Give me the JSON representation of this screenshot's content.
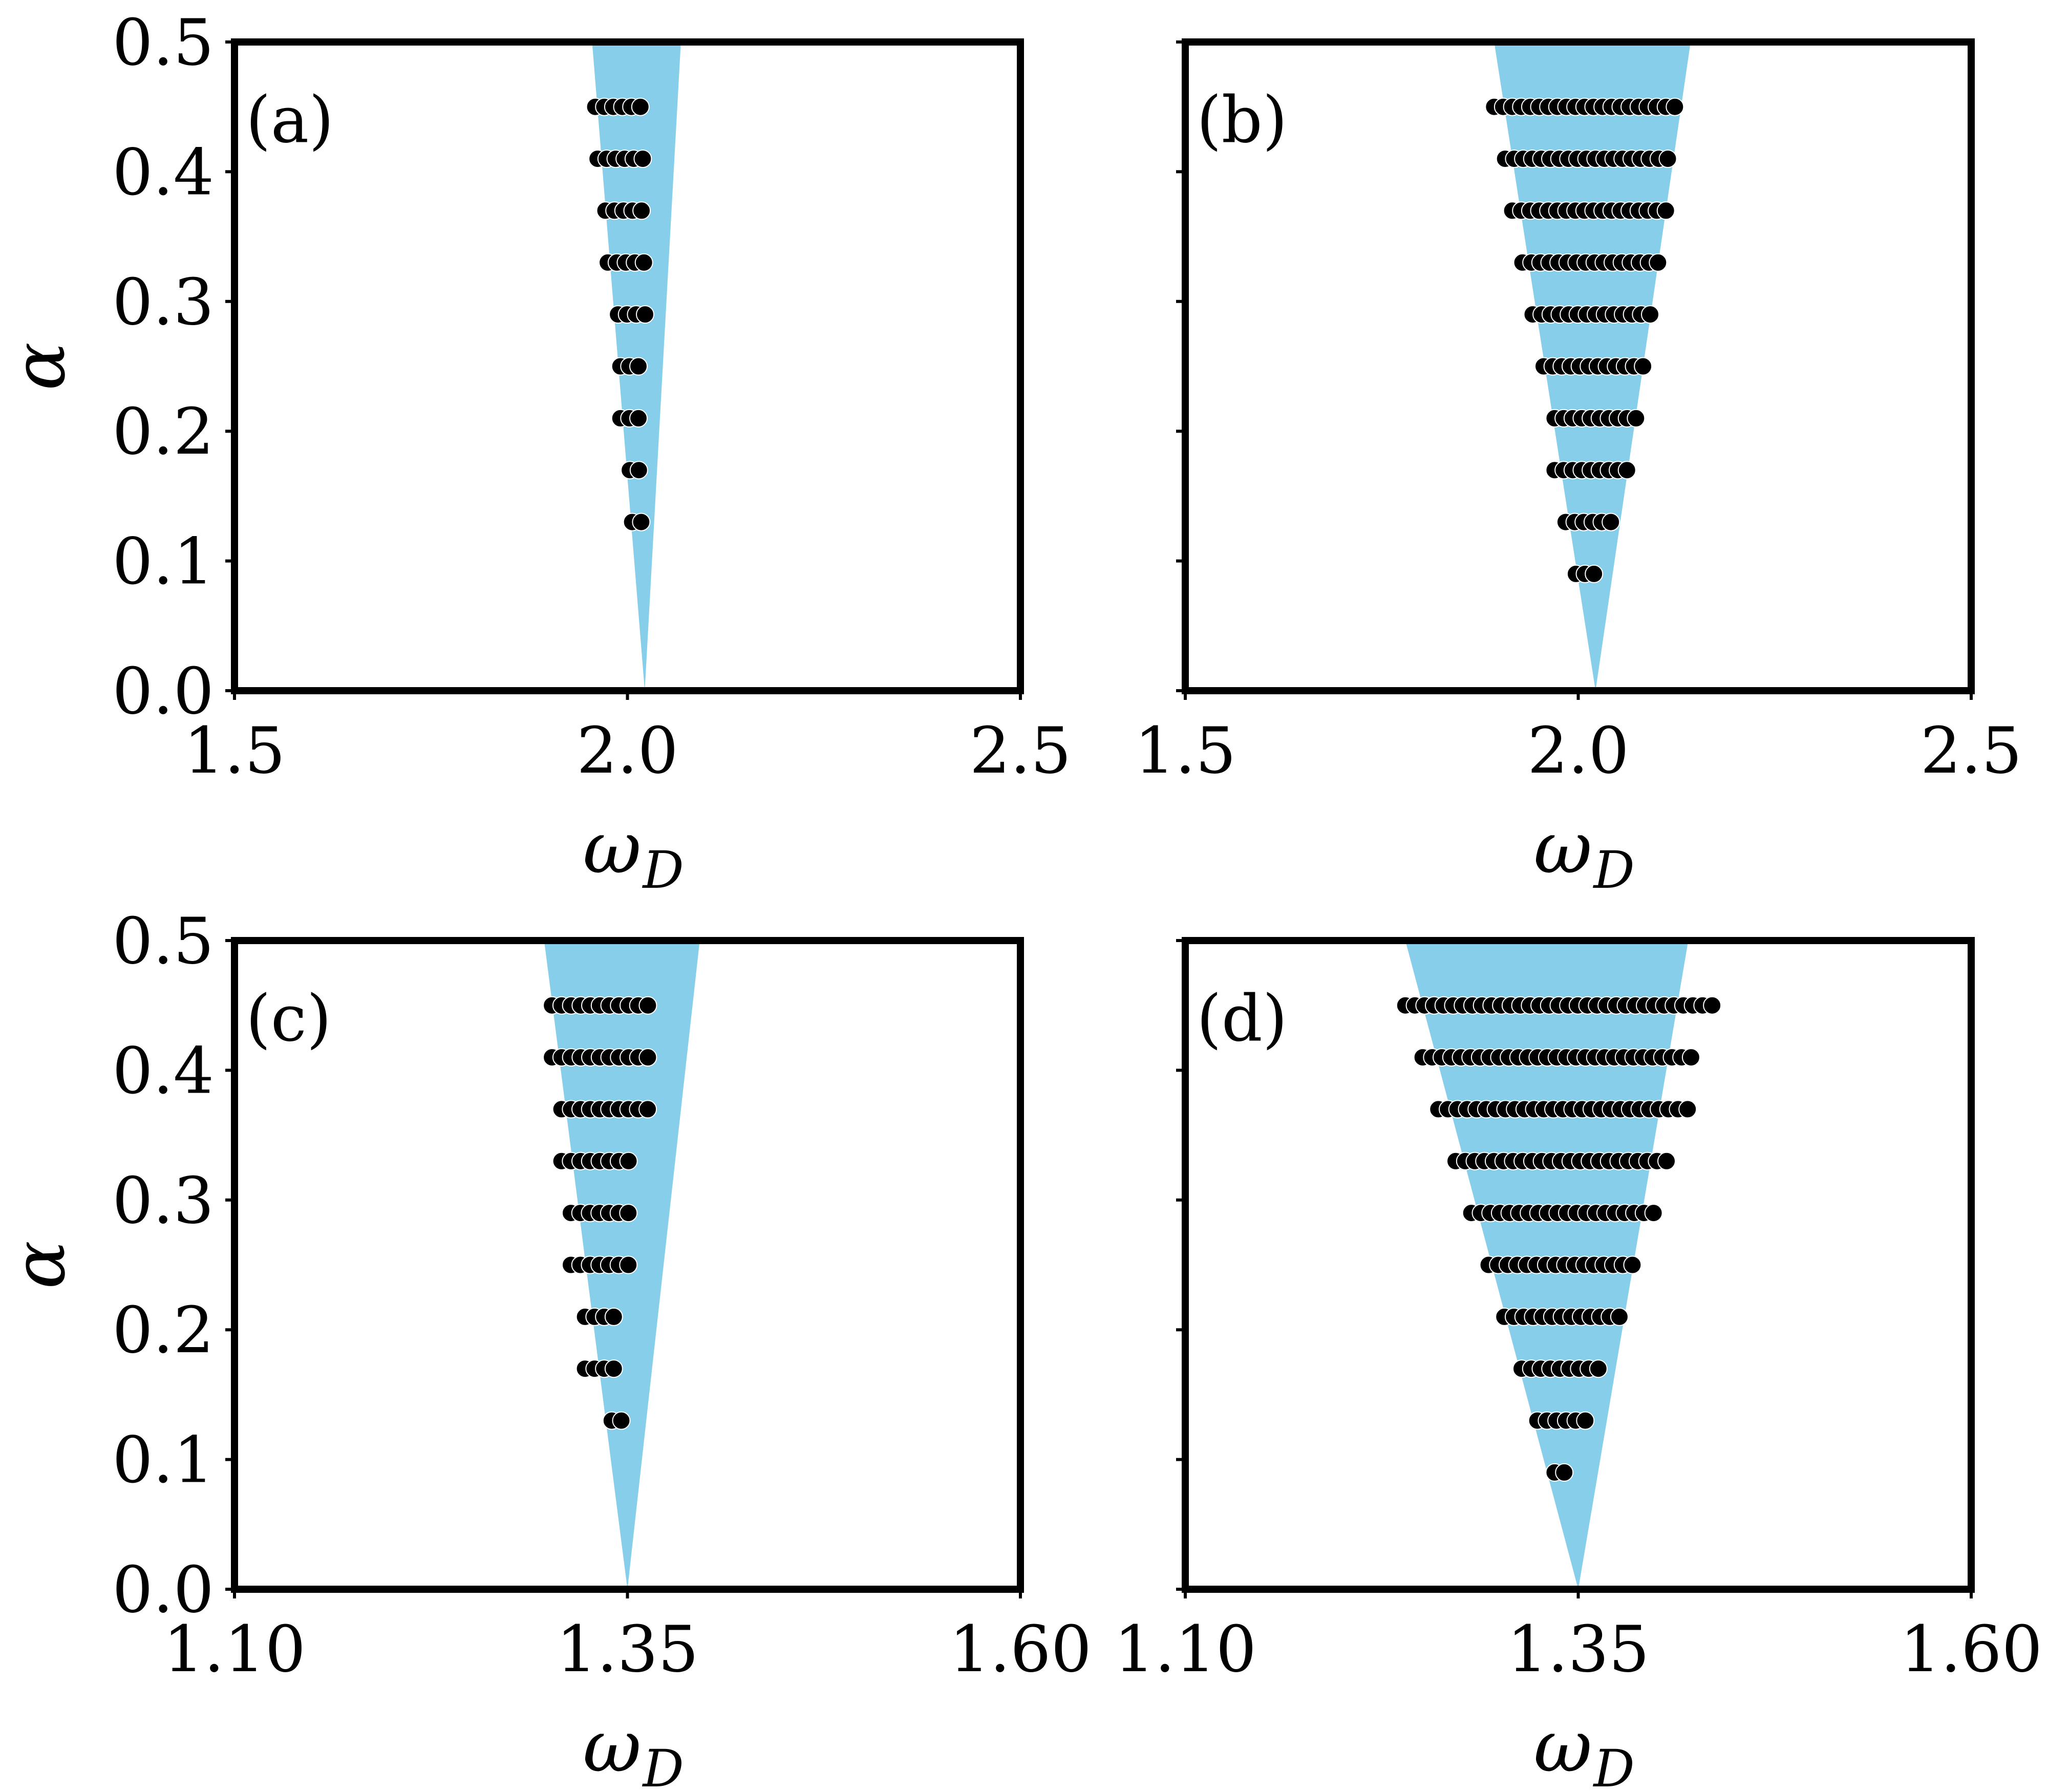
{
  "colors": {
    "region": "#87ceeb",
    "marker": "#000000",
    "frame": "#000000"
  },
  "chart_data": [
    {
      "type": "scatter",
      "panel_label": "(a)",
      "xlabel_main": "ω",
      "xlabel_sub": "D",
      "ylabel": "α",
      "xlim": [
        1.5,
        2.5
      ],
      "ylim": [
        0.0,
        0.5
      ],
      "xticks": [
        1.5,
        2.0,
        2.5
      ],
      "xtick_labels": [
        "1.5",
        "2.0",
        "2.5"
      ],
      "yticks": [
        0.0,
        0.1,
        0.2,
        0.3,
        0.4,
        0.5
      ],
      "ytick_labels": [
        "0.0",
        "0.1",
        "0.2",
        "0.3",
        "0.4",
        "0.5"
      ],
      "show_yticklabels": true,
      "region": {
        "apex": [
          2.022,
          0.0
        ],
        "top_left": 1.955,
        "top_right": 2.068,
        "top_alpha": 0.5
      },
      "rows": [
        {
          "alpha": 0.45,
          "x_start": 1.959,
          "step": 0.0115,
          "count": 6
        },
        {
          "alpha": 0.41,
          "x_start": 1.962,
          "step": 0.0115,
          "count": 6
        },
        {
          "alpha": 0.37,
          "x_start": 1.972,
          "step": 0.0115,
          "count": 5
        },
        {
          "alpha": 0.33,
          "x_start": 1.975,
          "step": 0.0115,
          "count": 5
        },
        {
          "alpha": 0.29,
          "x_start": 1.988,
          "step": 0.0115,
          "count": 4
        },
        {
          "alpha": 0.25,
          "x_start": 1.991,
          "step": 0.0115,
          "count": 3
        },
        {
          "alpha": 0.21,
          "x_start": 1.991,
          "step": 0.0115,
          "count": 3
        },
        {
          "alpha": 0.17,
          "x_start": 2.003,
          "step": 0.0115,
          "count": 2
        },
        {
          "alpha": 0.13,
          "x_start": 2.006,
          "step": 0.0115,
          "count": 2
        }
      ]
    },
    {
      "type": "scatter",
      "panel_label": "(b)",
      "xlabel_main": "ω",
      "xlabel_sub": "D",
      "ylabel": "",
      "xlim": [
        1.5,
        2.5
      ],
      "ylim": [
        0.0,
        0.5
      ],
      "xticks": [
        1.5,
        2.0,
        2.5
      ],
      "xtick_labels": [
        "1.5",
        "2.0",
        "2.5"
      ],
      "yticks": [
        0.0,
        0.1,
        0.2,
        0.3,
        0.4,
        0.5
      ],
      "ytick_labels": [],
      "show_yticklabels": false,
      "region": {
        "apex": [
          2.022,
          0.0
        ],
        "top_left": 1.893,
        "top_right": 2.143,
        "top_alpha": 0.5
      },
      "rows": [
        {
          "alpha": 0.45,
          "x_start": 1.893,
          "step": 0.0115,
          "count": 21
        },
        {
          "alpha": 0.41,
          "x_start": 1.907,
          "step": 0.0115,
          "count": 19
        },
        {
          "alpha": 0.37,
          "x_start": 1.916,
          "step": 0.0115,
          "count": 18
        },
        {
          "alpha": 0.33,
          "x_start": 1.929,
          "step": 0.0115,
          "count": 16
        },
        {
          "alpha": 0.29,
          "x_start": 1.942,
          "step": 0.0115,
          "count": 14
        },
        {
          "alpha": 0.25,
          "x_start": 1.956,
          "step": 0.0115,
          "count": 12
        },
        {
          "alpha": 0.21,
          "x_start": 1.97,
          "step": 0.0115,
          "count": 10
        },
        {
          "alpha": 0.17,
          "x_start": 1.97,
          "step": 0.0115,
          "count": 9
        },
        {
          "alpha": 0.13,
          "x_start": 1.984,
          "step": 0.0115,
          "count": 6
        },
        {
          "alpha": 0.09,
          "x_start": 1.997,
          "step": 0.0115,
          "count": 3
        }
      ]
    },
    {
      "type": "scatter",
      "panel_label": "(c)",
      "xlabel_main": "ω",
      "xlabel_sub": "D",
      "ylabel": "α",
      "xlim": [
        1.1,
        1.6
      ],
      "ylim": [
        0.0,
        0.5
      ],
      "xticks": [
        1.1,
        1.35,
        1.6
      ],
      "xtick_labels": [
        "1.10",
        "1.35",
        "1.60"
      ],
      "yticks": [
        0.0,
        0.1,
        0.2,
        0.3,
        0.4,
        0.5
      ],
      "ytick_labels": [
        "0.0",
        "0.1",
        "0.2",
        "0.3",
        "0.4",
        "0.5"
      ],
      "show_yticklabels": true,
      "region": {
        "apex": [
          1.35,
          0.0
        ],
        "top_left": 1.297,
        "top_right": 1.396,
        "top_alpha": 0.5
      },
      "rows": [
        {
          "alpha": 0.45,
          "x_start": 1.302,
          "step": 0.0061,
          "count": 11
        },
        {
          "alpha": 0.41,
          "x_start": 1.302,
          "step": 0.0061,
          "count": 11
        },
        {
          "alpha": 0.37,
          "x_start": 1.308,
          "step": 0.0061,
          "count": 10
        },
        {
          "alpha": 0.33,
          "x_start": 1.308,
          "step": 0.0061,
          "count": 8
        },
        {
          "alpha": 0.29,
          "x_start": 1.314,
          "step": 0.0061,
          "count": 7
        },
        {
          "alpha": 0.25,
          "x_start": 1.314,
          "step": 0.0061,
          "count": 7
        },
        {
          "alpha": 0.21,
          "x_start": 1.323,
          "step": 0.0061,
          "count": 4
        },
        {
          "alpha": 0.17,
          "x_start": 1.323,
          "step": 0.0061,
          "count": 4
        },
        {
          "alpha": 0.13,
          "x_start": 1.34,
          "step": 0.0061,
          "count": 2
        }
      ]
    },
    {
      "type": "scatter",
      "panel_label": "(d)",
      "xlabel_main": "ω",
      "xlabel_sub": "D",
      "ylabel": "",
      "xlim": [
        1.1,
        1.6
      ],
      "ylim": [
        0.0,
        0.5
      ],
      "xticks": [
        1.1,
        1.35,
        1.6
      ],
      "xtick_labels": [
        "1.10",
        "1.35",
        "1.60"
      ],
      "yticks": [
        0.0,
        0.1,
        0.2,
        0.3,
        0.4,
        0.5
      ],
      "ytick_labels": [],
      "show_yticklabels": false,
      "region": {
        "apex": [
          1.35,
          0.0
        ],
        "top_left": 1.24,
        "top_right": 1.42,
        "top_alpha": 0.5
      },
      "rows": [
        {
          "alpha": 0.45,
          "x_start": 1.24,
          "step": 0.0061,
          "count": 33
        },
        {
          "alpha": 0.41,
          "x_start": 1.251,
          "step": 0.0061,
          "count": 29
        },
        {
          "alpha": 0.37,
          "x_start": 1.261,
          "step": 0.0061,
          "count": 27
        },
        {
          "alpha": 0.33,
          "x_start": 1.272,
          "step": 0.0061,
          "count": 23
        },
        {
          "alpha": 0.29,
          "x_start": 1.282,
          "step": 0.0061,
          "count": 20
        },
        {
          "alpha": 0.25,
          "x_start": 1.293,
          "step": 0.0061,
          "count": 16
        },
        {
          "alpha": 0.21,
          "x_start": 1.303,
          "step": 0.0061,
          "count": 13
        },
        {
          "alpha": 0.17,
          "x_start": 1.314,
          "step": 0.0061,
          "count": 9
        },
        {
          "alpha": 0.13,
          "x_start": 1.324,
          "step": 0.0061,
          "count": 6
        },
        {
          "alpha": 0.09,
          "x_start": 1.335,
          "step": 0.0061,
          "count": 2
        }
      ]
    }
  ]
}
